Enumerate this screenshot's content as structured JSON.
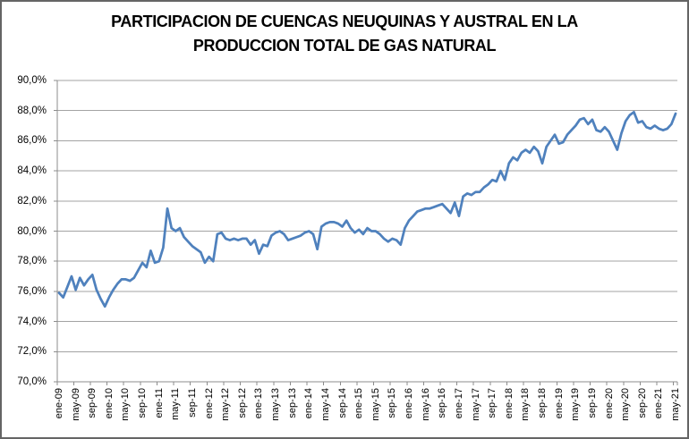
{
  "window": {
    "background_color": "#ffffff",
    "border_color": "#656565"
  },
  "chart_data": {
    "type": "line",
    "title": "PARTICIPACION DE CUENCAS NEUQUINAS Y AUSTRAL EN LA PRODUCCION TOTAL DE GAS NATURAL",
    "title_lines": [
      "PARTICIPACION DE CUENCAS NEUQUINAS Y AUSTRAL EN LA",
      "PRODUCCION TOTAL DE GAS NATURAL"
    ],
    "xlabel": "",
    "ylabel": "",
    "legend": "none",
    "grid": "horizontal",
    "ylim": [
      70,
      90
    ],
    "y_tick_step": 2,
    "y_tick_labels": [
      "90,0%",
      "88,0%",
      "86,0%",
      "84,0%",
      "82,0%",
      "80,0%",
      "78,0%",
      "76,0%",
      "74,0%",
      "72,0%",
      "70,0%"
    ],
    "x_tick_every": 4,
    "x": [
      "ene-09",
      "feb-09",
      "mar-09",
      "abr-09",
      "may-09",
      "jun-09",
      "jul-09",
      "ago-09",
      "sep-09",
      "oct-09",
      "nov-09",
      "dic-09",
      "ene-10",
      "feb-10",
      "mar-10",
      "abr-10",
      "may-10",
      "jun-10",
      "jul-10",
      "ago-10",
      "sep-10",
      "oct-10",
      "nov-10",
      "dic-10",
      "ene-11",
      "feb-11",
      "mar-11",
      "abr-11",
      "may-11",
      "jun-11",
      "jul-11",
      "ago-11",
      "sep-11",
      "oct-11",
      "nov-11",
      "dic-11",
      "ene-12",
      "feb-12",
      "mar-12",
      "abr-12",
      "may-12",
      "jun-12",
      "jul-12",
      "ago-12",
      "sep-12",
      "oct-12",
      "nov-12",
      "dic-12",
      "ene-13",
      "feb-13",
      "mar-13",
      "abr-13",
      "may-13",
      "jun-13",
      "jul-13",
      "ago-13",
      "sep-13",
      "oct-13",
      "nov-13",
      "dic-13",
      "ene-14",
      "feb-14",
      "mar-14",
      "abr-14",
      "may-14",
      "jun-14",
      "jul-14",
      "ago-14",
      "sep-14",
      "oct-14",
      "nov-14",
      "dic-14",
      "ene-15",
      "feb-15",
      "mar-15",
      "abr-15",
      "may-15",
      "jun-15",
      "jul-15",
      "ago-15",
      "sep-15",
      "oct-15",
      "nov-15",
      "dic-15",
      "ene-16",
      "feb-16",
      "mar-16",
      "abr-16",
      "may-16",
      "jun-16",
      "jul-16",
      "ago-16",
      "sep-16",
      "oct-16",
      "nov-16",
      "dic-16",
      "ene-17",
      "feb-17",
      "mar-17",
      "abr-17",
      "may-17",
      "jun-17",
      "jul-17",
      "ago-17",
      "sep-17",
      "oct-17",
      "nov-17",
      "dic-17",
      "ene-18",
      "feb-18",
      "mar-18",
      "abr-18",
      "may-18",
      "jun-18",
      "jul-18",
      "ago-18",
      "sep-18",
      "oct-18",
      "nov-18",
      "dic-18",
      "ene-19",
      "feb-19",
      "mar-19",
      "abr-19",
      "may-19",
      "jun-19",
      "jul-19",
      "ago-19",
      "sep-19",
      "oct-19",
      "nov-19",
      "dic-19",
      "ene-20",
      "feb-20",
      "mar-20",
      "abr-20",
      "may-20",
      "jun-20",
      "jul-20",
      "ago-20",
      "sep-20",
      "oct-20",
      "nov-20",
      "dic-20",
      "ene-21",
      "feb-21",
      "mar-21",
      "abr-21",
      "may-21"
    ],
    "series": [
      {
        "color": "#4F81BD",
        "values": [
          75.9,
          75.6,
          76.3,
          77.0,
          76.1,
          76.9,
          76.4,
          76.8,
          77.1,
          76.1,
          75.5,
          75.0,
          75.6,
          76.1,
          76.5,
          76.8,
          76.8,
          76.7,
          76.9,
          77.4,
          77.9,
          77.6,
          78.7,
          77.9,
          78.0,
          78.9,
          81.5,
          80.2,
          80.0,
          80.2,
          79.6,
          79.3,
          79.0,
          78.8,
          78.6,
          77.9,
          78.3,
          78.0,
          79.8,
          79.9,
          79.5,
          79.4,
          79.5,
          79.4,
          79.5,
          79.5,
          79.1,
          79.4,
          78.5,
          79.1,
          79.0,
          79.7,
          79.9,
          80.0,
          79.8,
          79.4,
          79.5,
          79.6,
          79.7,
          79.9,
          80.0,
          79.8,
          78.8,
          80.3,
          80.5,
          80.6,
          80.6,
          80.5,
          80.3,
          80.7,
          80.2,
          79.9,
          80.1,
          79.8,
          80.2,
          80.0,
          80.0,
          79.8,
          79.5,
          79.3,
          79.5,
          79.4,
          79.1,
          80.2,
          80.7,
          81.0,
          81.3,
          81.4,
          81.5,
          81.5,
          81.6,
          81.7,
          81.8,
          81.5,
          81.2,
          81.9,
          81.0,
          82.3,
          82.5,
          82.4,
          82.6,
          82.6,
          82.9,
          83.1,
          83.4,
          83.3,
          84.0,
          83.4,
          84.5,
          84.9,
          84.7,
          85.2,
          85.4,
          85.2,
          85.6,
          85.3,
          84.5,
          85.6,
          86.0,
          86.4,
          85.8,
          85.9,
          86.4,
          86.7,
          87.0,
          87.4,
          87.5,
          87.1,
          87.4,
          86.7,
          86.6,
          86.9,
          86.6,
          86.0,
          85.4,
          86.5,
          87.3,
          87.7,
          87.9,
          87.2,
          87.3,
          86.9,
          86.8,
          87.0,
          86.8,
          86.7,
          86.8,
          87.1,
          87.8
        ]
      }
    ],
    "style": {
      "line_width": 2.75,
      "gridline_color": "#a3a3a3",
      "axis_color": "#8c8c8c",
      "tick_label_color": "#000000"
    }
  }
}
